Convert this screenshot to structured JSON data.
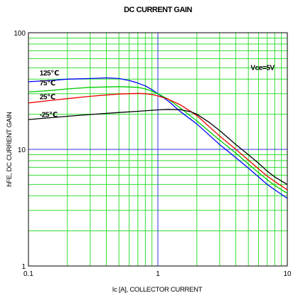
{
  "chart_data": {
    "type": "line",
    "title": "DC CURRENT GAIN",
    "xlabel": "Ic [A], COLLECTOR CURRENT",
    "ylabel": "hFE, DC CURRENT GAIN",
    "xscale": "log",
    "yscale": "log",
    "xlim": [
      0.1,
      10
    ],
    "ylim": [
      1,
      100
    ],
    "grid": true,
    "x_ticks": [
      {
        "value": 0.1,
        "label": "0.1"
      },
      {
        "value": 1,
        "label": "1"
      },
      {
        "value": 10,
        "label": "10"
      }
    ],
    "y_ticks": [
      {
        "value": 1,
        "label": "1"
      },
      {
        "value": 10,
        "label": "10"
      },
      {
        "value": 100,
        "label": "100"
      }
    ],
    "annotations": [
      {
        "text": "Vce=5V",
        "x": 5.2,
        "y": 48
      }
    ],
    "series": [
      {
        "name": "125℃",
        "color": "#0000ff",
        "x": [
          0.1,
          0.15,
          0.2,
          0.3,
          0.4,
          0.5,
          0.6,
          0.7,
          0.8,
          0.9,
          1.0,
          1.2,
          1.5,
          2,
          3,
          4,
          5,
          6,
          7,
          8,
          10
        ],
        "y": [
          38,
          39,
          40,
          40.5,
          41,
          40.5,
          39,
          37,
          35,
          32.5,
          30,
          26,
          21,
          16.5,
          11,
          8.5,
          6.9,
          5.8,
          5.0,
          4.5,
          3.8
        ]
      },
      {
        "name": "75℃",
        "color": "#00cc00",
        "x": [
          0.1,
          0.15,
          0.2,
          0.3,
          0.5,
          0.7,
          0.8,
          0.9,
          1.0,
          1.2,
          1.5,
          2,
          3,
          4,
          5,
          6,
          7,
          8,
          10
        ],
        "y": [
          31,
          32,
          33,
          34,
          34.5,
          34,
          33,
          31.5,
          30,
          27,
          22.5,
          17.5,
          12,
          9.3,
          7.5,
          6.3,
          5.5,
          4.9,
          4.2
        ]
      },
      {
        "name": "25℃",
        "color": "#ee0000",
        "x": [
          0.1,
          0.15,
          0.2,
          0.3,
          0.5,
          0.7,
          0.8,
          0.9,
          1.0,
          1.2,
          1.5,
          2,
          3,
          4,
          5,
          6,
          7,
          8,
          10
        ],
        "y": [
          25,
          26.3,
          27.2,
          28.5,
          29.8,
          30.2,
          30,
          29.5,
          28.7,
          27,
          24,
          19.5,
          13,
          10,
          8.1,
          6.8,
          5.9,
          5.3,
          4.5
        ]
      },
      {
        "name": "-25℃",
        "color": "#000000",
        "x": [
          0.1,
          0.15,
          0.2,
          0.3,
          0.5,
          0.7,
          1.0,
          1.2,
          1.5,
          1.8,
          2,
          2.5,
          3,
          4,
          5,
          6,
          7,
          8,
          10
        ],
        "y": [
          18,
          18.7,
          19.2,
          19.9,
          20.7,
          21.2,
          21.8,
          22,
          21.9,
          21,
          20,
          17,
          14.5,
          11,
          9,
          7.6,
          6.5,
          5.8,
          5.0
        ]
      }
    ],
    "series_labels": [
      {
        "series": 0,
        "x": 0.122,
        "y": 43
      },
      {
        "series": 1,
        "x": 0.122,
        "y": 35.5
      },
      {
        "series": 2,
        "x": 0.122,
        "y": 27
      },
      {
        "series": 3,
        "x": 0.122,
        "y": 19
      }
    ]
  }
}
